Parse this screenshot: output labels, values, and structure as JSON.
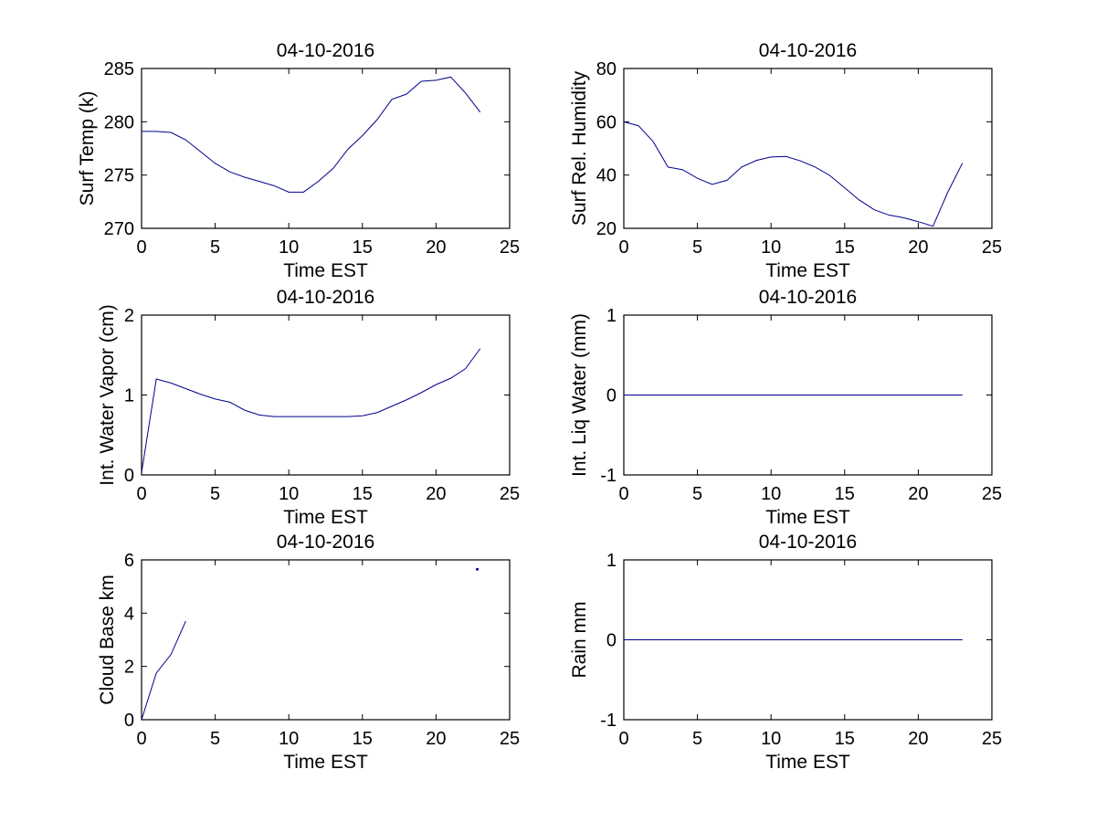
{
  "figure": {
    "background": "#ffffff",
    "axis_color": "#000000",
    "line_color": "#00008b"
  },
  "chart_data": [
    {
      "id": "surf-temp",
      "type": "line",
      "title": "04-10-2016",
      "xlabel": "Time EST",
      "ylabel": "Surf Temp (k)",
      "xlim": [
        0,
        25
      ],
      "ylim": [
        270,
        285
      ],
      "xticks": [
        0,
        5,
        10,
        15,
        20,
        25
      ],
      "yticks": [
        270,
        275,
        280,
        285
      ],
      "grid": false,
      "series": [
        {
          "name": "surface-temperature",
          "x": [
            0,
            1,
            2,
            3,
            4,
            5,
            6,
            7,
            8,
            9,
            10,
            11,
            12,
            13,
            14,
            15,
            16,
            17,
            18,
            19,
            20,
            21,
            22,
            23
          ],
          "y": [
            279.1,
            279.1,
            279.0,
            278.3,
            277.2,
            276.1,
            275.3,
            274.8,
            274.4,
            274.0,
            273.4,
            273.4,
            274.4,
            275.6,
            277.4,
            278.7,
            280.2,
            282.1,
            282.6,
            283.8,
            283.9,
            284.2,
            282.7,
            280.9
          ]
        }
      ]
    },
    {
      "id": "surf-rel-humidity",
      "type": "line",
      "title": "04-10-2016",
      "xlabel": "Time EST",
      "ylabel": "Surf Rel. Humidity",
      "xlim": [
        0,
        25
      ],
      "ylim": [
        20,
        80
      ],
      "xticks": [
        0,
        5,
        10,
        15,
        20,
        25
      ],
      "yticks": [
        20,
        40,
        60,
        80
      ],
      "grid": false,
      "series": [
        {
          "name": "surface-relative-humidity",
          "x": [
            0,
            1,
            2,
            3,
            4,
            5,
            6,
            7,
            8,
            9,
            10,
            11,
            12,
            13,
            14,
            15,
            16,
            17,
            18,
            19,
            20,
            21,
            22,
            23
          ],
          "y": [
            60,
            58.5,
            52.5,
            43,
            42,
            38.8,
            36.5,
            38,
            43,
            45.5,
            46.8,
            47,
            45.3,
            43,
            39.8,
            35.2,
            30.6,
            27,
            25,
            24,
            22.5,
            20.8,
            33.5,
            44.5
          ]
        }
      ]
    },
    {
      "id": "int-water-vapor",
      "type": "line",
      "title": "04-10-2016",
      "xlabel": "Time EST",
      "ylabel": "Int. Water Vapor (cm)",
      "xlim": [
        0,
        25
      ],
      "ylim": [
        0,
        2
      ],
      "xticks": [
        0,
        5,
        10,
        15,
        20,
        25
      ],
      "yticks": [
        0,
        1,
        2
      ],
      "grid": false,
      "series": [
        {
          "name": "integrated-water-vapor",
          "x": [
            0,
            1,
            2,
            3,
            4,
            5,
            6,
            7,
            8,
            9,
            10,
            11,
            12,
            13,
            14,
            15,
            16,
            17,
            18,
            19,
            20,
            21,
            22,
            23
          ],
          "y": [
            0.03,
            1.2,
            1.15,
            1.08,
            1.01,
            0.95,
            0.91,
            0.81,
            0.75,
            0.73,
            0.73,
            0.73,
            0.73,
            0.73,
            0.73,
            0.74,
            0.78,
            0.86,
            0.94,
            1.03,
            1.13,
            1.21,
            1.33,
            1.58
          ]
        }
      ]
    },
    {
      "id": "int-liq-water",
      "type": "line",
      "title": "04-10-2016",
      "xlabel": "Time EST",
      "ylabel": "Int. Liq Water (mm)",
      "xlim": [
        0,
        25
      ],
      "ylim": [
        -1,
        1
      ],
      "xticks": [
        0,
        5,
        10,
        15,
        20,
        25
      ],
      "yticks": [
        -1,
        0,
        1
      ],
      "grid": false,
      "series": [
        {
          "name": "integrated-liquid-water",
          "x": [
            0,
            23
          ],
          "y": [
            0,
            0
          ]
        }
      ]
    },
    {
      "id": "cloud-base",
      "type": "line",
      "title": "04-10-2016",
      "xlabel": "Time EST",
      "ylabel": "Cloud Base km",
      "xlim": [
        0,
        25
      ],
      "ylim": [
        0,
        6
      ],
      "xticks": [
        0,
        5,
        10,
        15,
        20,
        25
      ],
      "yticks": [
        0,
        2,
        4,
        6
      ],
      "grid": false,
      "series": [
        {
          "name": "cloud-base-height",
          "x": [
            0,
            1,
            2,
            3
          ],
          "y": [
            0,
            1.75,
            2.45,
            3.7
          ]
        }
      ],
      "points": [
        {
          "x": 22.8,
          "y": 5.65
        }
      ]
    },
    {
      "id": "rain",
      "type": "line",
      "title": "04-10-2016",
      "xlabel": "Time EST",
      "ylabel": "Rain mm",
      "xlim": [
        0,
        25
      ],
      "ylim": [
        -1,
        1
      ],
      "xticks": [
        0,
        5,
        10,
        15,
        20,
        25
      ],
      "yticks": [
        -1,
        0,
        1
      ],
      "grid": false,
      "series": [
        {
          "name": "rain-amount",
          "x": [
            0,
            23
          ],
          "y": [
            0,
            0
          ]
        }
      ]
    }
  ]
}
